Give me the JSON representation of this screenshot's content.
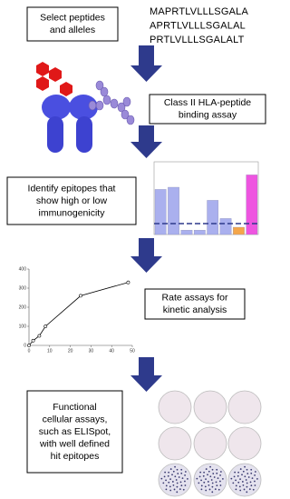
{
  "steps": [
    {
      "lines": [
        "Select peptides",
        "and alleles"
      ]
    },
    {
      "lines": [
        "Class II HLA-peptide",
        "binding assay"
      ]
    },
    {
      "lines": [
        "Identify epitopes that",
        "show high or low",
        "immunogenicity"
      ]
    },
    {
      "lines": [
        "Rate assays for",
        "kinetic analysis"
      ]
    },
    {
      "lines": [
        "Functional",
        "cellular assays,",
        "such as ELISpot,",
        "with well defined",
        "hit epitopes"
      ]
    }
  ],
  "peptides": [
    "MAPRTLVLLLSGALA",
    "APRTLVLLLSGALAL",
    "PRTLVLLLSGALALT"
  ],
  "binding_chart": {
    "values": [
      0.62,
      0.65,
      0.06,
      0.06,
      0.47,
      0.22,
      0.1,
      0.82
    ],
    "colors": [
      "#aab0ee",
      "#aab0ee",
      "#aab0ee",
      "#aab0ee",
      "#aab0ee",
      "#aab0ee",
      "#f4a64a",
      "#ee55e0"
    ],
    "threshold": 0.15,
    "ylim": [
      0,
      1
    ]
  },
  "kinetic_chart": {
    "x": [
      0,
      2,
      5,
      8,
      25,
      48
    ],
    "values": [
      0,
      25,
      50,
      100,
      260,
      330
    ],
    "xlim": [
      0,
      50
    ],
    "ylim": [
      0,
      400
    ],
    "xticks": [
      0,
      10,
      20,
      30,
      40,
      50
    ],
    "yticks": [
      0,
      100,
      200,
      300,
      400
    ]
  }
}
